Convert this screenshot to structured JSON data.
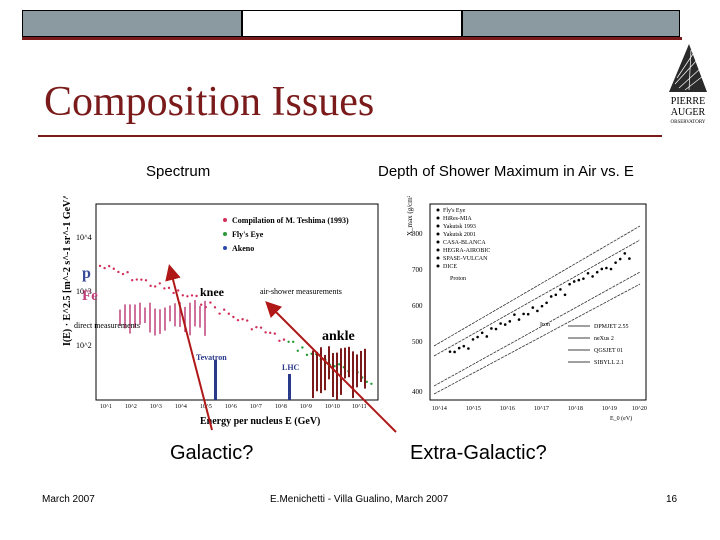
{
  "slide": {
    "title": "Composition Issues",
    "spectrum_label": "Spectrum",
    "xmax_label": "Depth of Shower Maximum in Air vs. E",
    "galactic_label": "Galactic?",
    "extragalactic_label": "Extra-Galactic?",
    "footer_date": "March 2007",
    "footer_center": "E.Menichetti - Villa Gualino, March 2007",
    "page_number": "16"
  },
  "logo": {
    "line1": "PIERRE",
    "line2": "AUGER",
    "line3": "OBSERVATORY"
  },
  "colors": {
    "accent": "#7a1a1a",
    "arrow": "#b01818",
    "bar_fill": "#7a1a1a",
    "proton": "#3a4a9a",
    "iron": "#c0407a"
  },
  "spectrum_figure": {
    "ylabel": "I(E) · E^2.5 [m^-2 s^-1 sr^-1 GeV^1.5]",
    "xlabel": "Energy per nucleus E (GeV)",
    "legend": [
      {
        "label": "Compilation of M. Teshima (1993)",
        "color": "#d0305a"
      },
      {
        "label": "Fly's Eye",
        "color": "#2a9a3a"
      },
      {
        "label": "Akeno",
        "color": "#2a4ab0"
      }
    ],
    "y_ticks": [
      "10^4",
      "10^3",
      "10^2"
    ],
    "x_ticks": [
      "10^1",
      "10^2",
      "10^3",
      "10^4",
      "10^5",
      "10^6",
      "10^7",
      "10^8",
      "10^9",
      "10^10",
      "10^11"
    ],
    "annotations": {
      "p": "p",
      "fe": "Fe",
      "knee": "knee",
      "air_shower": "air-shower measurements",
      "direct": "direct measurements",
      "ankle": "ankle",
      "tevatron": "Tevatron",
      "lhc": "LHC"
    }
  },
  "xmax_figure": {
    "ylabel": "X_max (g/cm²)",
    "xlabel": "E_0 (eV)",
    "y_ticks": [
      "800",
      "700",
      "600",
      "500",
      "400"
    ],
    "x_ticks": [
      "10^14",
      "10^15",
      "10^16",
      "10^17",
      "10^18",
      "10^19",
      "10^20"
    ],
    "experiments": [
      "Fly's Eye",
      "HiRes-MIA",
      "Yakutsk 1993",
      "Yakutsk 2001",
      "CASA-BLANCA",
      "HEGRA-AIROBIC",
      "SPASE-VULCAN",
      "DICE"
    ],
    "proton_label": "Proton",
    "iron_label": "Iron",
    "models": [
      "DPMJET 2.55",
      "neXus 2",
      "QGSJET 01",
      "SIBYLL 2.1"
    ]
  }
}
